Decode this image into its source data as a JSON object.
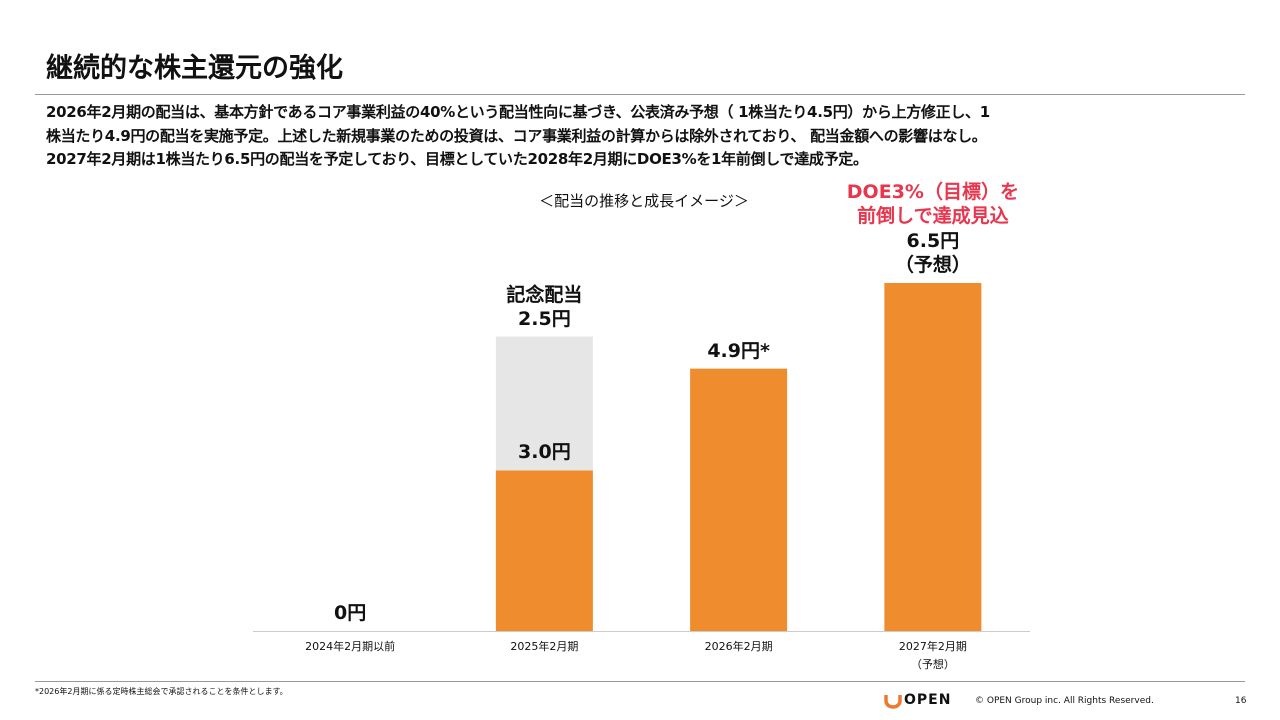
{
  "title": "継続的な株主還元の強化",
  "description": [
    "2026年2月期の配当は、基本方針であるコア事業利益の40%という配当性向に基づき、公表済み予想（ 1株当たり4.5円）から上方修正し、1",
    "株当たり4.9円の配当を実施予定。上述した新規事業のための投資は、コア事業利益の計算からは除外されており、 配当金額への影響はなし。",
    "2027年2月期は1株当たり6.5円の配当を予定しており、目標としていた2028年2月期にDOE3%を1年前倒しで達成予定。"
  ],
  "chart_data": {
    "type": "bar",
    "stacked": true,
    "subtitle": "＜配当の推移と成長イメージ＞",
    "annotation": "DOE3%（目標）を\n前倒しで達成見込",
    "categories": [
      "2024年2月期以前",
      "2025年2月期",
      "2026年2月期",
      "2027年2月期\n（予想）"
    ],
    "series": [
      {
        "color": "#ee8c2e",
        "values": [
          0,
          3.0,
          4.9,
          6.5
        ],
        "value_labels": [
          "0円",
          "3.0円",
          "4.9円*",
          "6.5円\n（予想）"
        ]
      },
      {
        "name": "記念配当",
        "color": "#e6e6e6",
        "values": [
          null,
          2.5,
          null,
          null
        ],
        "value_labels": [
          null,
          "2.5円",
          null,
          null
        ]
      }
    ],
    "ylim": [
      0,
      6.5
    ]
  },
  "footnote": "*2026年2月期に係る定時株主総会で承認されることを条件とします。",
  "footer": {
    "brand": "OPEN",
    "copyright": "© OPEN Group inc. All Rights Reserved.",
    "page": "16"
  }
}
